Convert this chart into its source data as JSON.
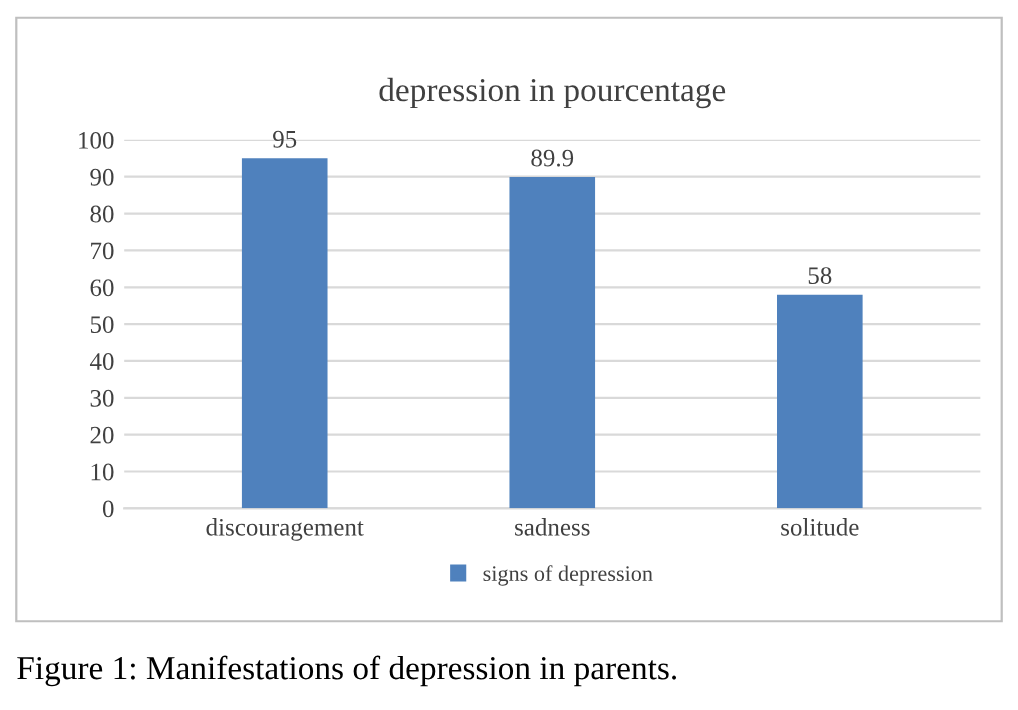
{
  "chart_data": {
    "type": "bar",
    "title": "depression in pourcentage",
    "categories": [
      "discouragement",
      "sadness",
      "solitude"
    ],
    "series": [
      {
        "name": "signs of depression",
        "color": "#4f81bd",
        "values": [
          95,
          89.9,
          58
        ]
      }
    ],
    "ylim": [
      0,
      100
    ],
    "yticks": [
      0,
      10,
      20,
      30,
      40,
      50,
      60,
      70,
      80,
      90,
      100
    ],
    "grid": "y",
    "legend": "bottom",
    "data_labels": true,
    "annotations": [
      "Figure 1: Manifestations of depression in parents."
    ]
  }
}
